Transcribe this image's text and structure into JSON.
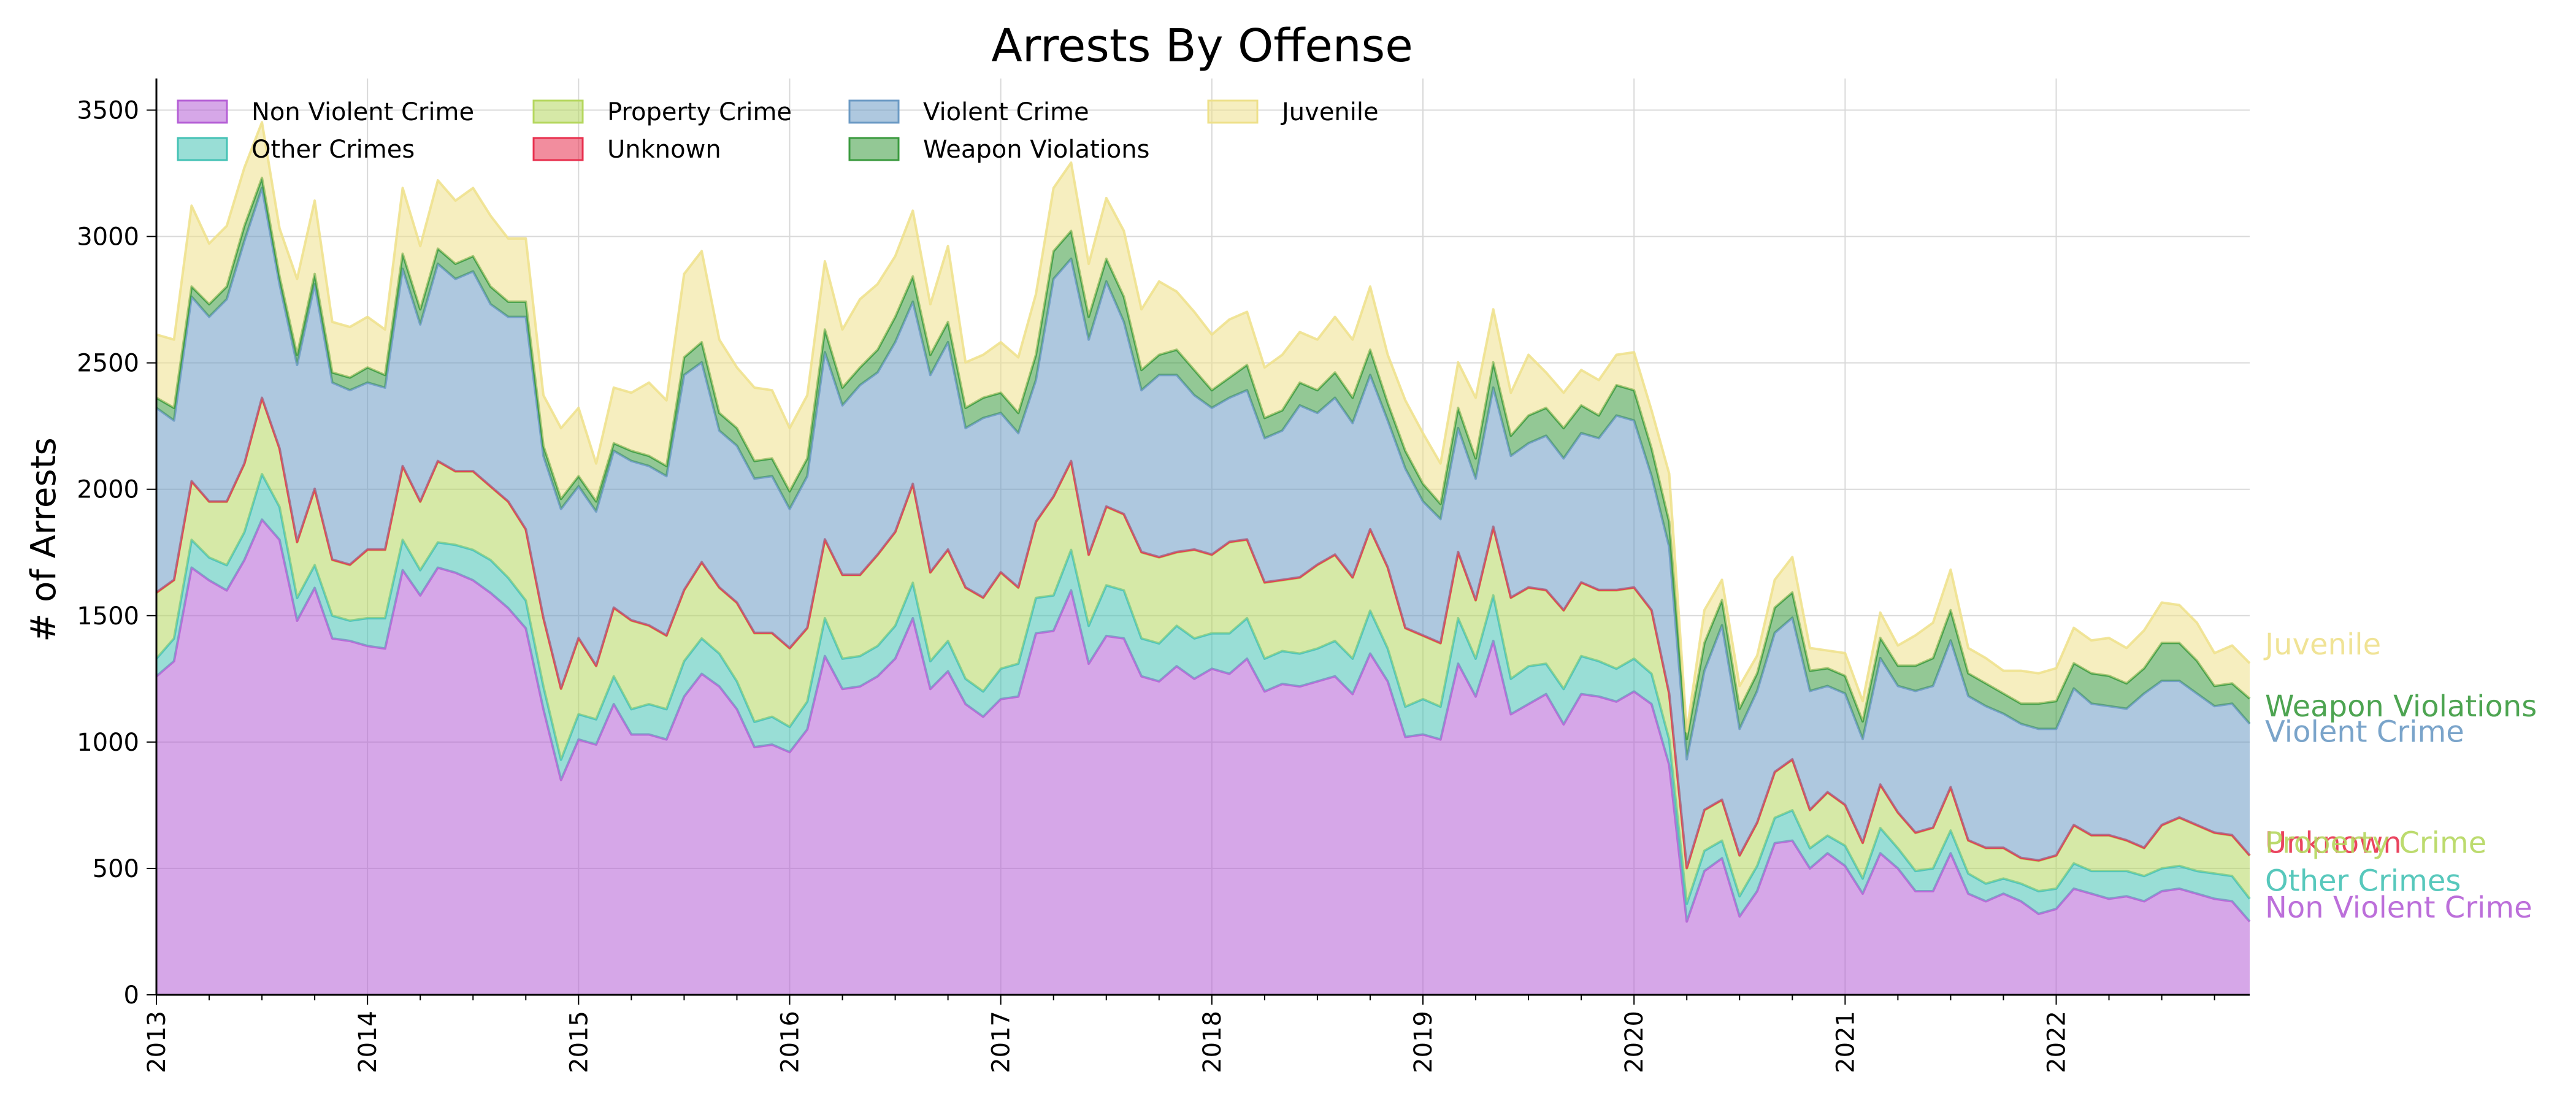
{
  "chart_data": {
    "type": "area",
    "stacked": true,
    "title": "Arrests By Offense",
    "xlabel": "",
    "ylabel": "# of Arrests",
    "xlim": [
      2013.0,
      2022.9167
    ],
    "ylim": [
      0,
      3625
    ],
    "grid": true,
    "legend_position": "top-left",
    "x_start": "2013-01",
    "x_step": "monthly",
    "x_tick_labels": [
      "2013",
      "2014",
      "2015",
      "2016",
      "2017",
      "2018",
      "2019",
      "2020",
      "2021",
      "2022"
    ],
    "y_ticks": [
      0,
      500,
      1000,
      1500,
      2000,
      2500,
      3000,
      3500
    ],
    "series": [
      {
        "name": "Non Violent Crime",
        "color": "#b55fd6",
        "values": [
          1260,
          1320,
          1690,
          1640,
          1600,
          1720,
          1880,
          1800,
          1480,
          1610,
          1410,
          1400,
          1380,
          1370,
          1680,
          1580,
          1690,
          1670,
          1640,
          1590,
          1530,
          1450,
          1130,
          850,
          1010,
          990,
          1150,
          1030,
          1030,
          1010,
          1180,
          1270,
          1220,
          1130,
          980,
          990,
          960,
          1050,
          1340,
          1210,
          1220,
          1260,
          1330,
          1490,
          1210,
          1280,
          1150,
          1100,
          1170,
          1180,
          1430,
          1440,
          1600,
          1310,
          1420,
          1410,
          1260,
          1240,
          1300,
          1250,
          1290,
          1270,
          1330,
          1200,
          1230,
          1220,
          1240,
          1260,
          1190,
          1350,
          1240,
          1020,
          1030,
          1010,
          1310,
          1180,
          1400,
          1110,
          1150,
          1190,
          1070,
          1190,
          1180,
          1160,
          1200,
          1150,
          910,
          290,
          490,
          540,
          310,
          410,
          600,
          610,
          500,
          560,
          510,
          400,
          560,
          500,
          410,
          410,
          560,
          400,
          370,
          400,
          370,
          320,
          340,
          420,
          400,
          380,
          390,
          370,
          410,
          420,
          400,
          380,
          370,
          290
        ]
      },
      {
        "name": "Other Crimes",
        "color": "#45c2b5",
        "values": [
          70,
          90,
          110,
          90,
          100,
          110,
          180,
          130,
          90,
          90,
          90,
          80,
          110,
          120,
          120,
          100,
          100,
          110,
          120,
          130,
          120,
          110,
          90,
          80,
          100,
          100,
          110,
          100,
          120,
          120,
          140,
          140,
          130,
          110,
          100,
          110,
          100,
          110,
          150,
          120,
          120,
          120,
          130,
          140,
          110,
          120,
          100,
          100,
          120,
          130,
          140,
          140,
          160,
          150,
          200,
          190,
          150,
          150,
          160,
          160,
          140,
          160,
          160,
          130,
          130,
          130,
          130,
          140,
          140,
          170,
          130,
          120,
          140,
          130,
          180,
          150,
          180,
          140,
          150,
          120,
          140,
          150,
          140,
          130,
          130,
          120,
          100,
          70,
          80,
          70,
          80,
          100,
          100,
          120,
          80,
          70,
          80,
          60,
          100,
          80,
          80,
          90,
          90,
          80,
          70,
          60,
          70,
          90,
          80,
          100,
          90,
          110,
          100,
          100,
          90,
          90,
          90,
          100,
          100,
          90
        ]
      },
      {
        "name": "Property Crime",
        "color": "#b5d75e",
        "values": [
          260,
          230,
          230,
          220,
          250,
          270,
          300,
          230,
          220,
          300,
          220,
          220,
          270,
          270,
          290,
          270,
          320,
          290,
          310,
          290,
          300,
          280,
          270,
          280,
          300,
          210,
          270,
          350,
          310,
          290,
          280,
          300,
          260,
          310,
          350,
          330,
          310,
          290,
          310,
          330,
          320,
          360,
          370,
          390,
          350,
          360,
          360,
          370,
          380,
          300,
          300,
          390,
          350,
          280,
          310,
          300,
          340,
          340,
          290,
          350,
          310,
          360,
          310,
          300,
          280,
          300,
          330,
          340,
          320,
          320,
          320,
          310,
          250,
          250,
          260,
          230,
          270,
          320,
          310,
          290,
          310,
          290,
          280,
          310,
          280,
          250,
          180,
          140,
          160,
          160,
          160,
          170,
          180,
          200,
          150,
          170,
          160,
          140,
          170,
          140,
          150,
          160,
          170,
          130,
          140,
          120,
          100,
          120,
          130,
          150,
          140,
          140,
          120,
          110,
          170,
          190,
          180,
          160,
          160,
          170
        ]
      },
      {
        "name": "Unknown",
        "color": "#e8304e",
        "values": [
          2,
          2,
          2,
          2,
          2,
          2,
          2,
          2,
          2,
          2,
          2,
          2,
          2,
          2,
          2,
          2,
          2,
          2,
          2,
          2,
          2,
          2,
          2,
          2,
          2,
          2,
          2,
          2,
          2,
          2,
          2,
          2,
          2,
          2,
          2,
          2,
          2,
          2,
          2,
          2,
          2,
          2,
          2,
          2,
          2,
          2,
          2,
          2,
          2,
          2,
          2,
          2,
          2,
          2,
          2,
          2,
          2,
          2,
          2,
          2,
          2,
          2,
          2,
          2,
          2,
          2,
          2,
          2,
          2,
          2,
          2,
          2,
          2,
          2,
          2,
          2,
          2,
          2,
          2,
          2,
          2,
          2,
          2,
          2,
          2,
          2,
          2,
          2,
          2,
          2,
          2,
          2,
          2,
          2,
          2,
          2,
          2,
          2,
          2,
          2,
          2,
          2,
          2,
          2,
          2,
          2,
          2,
          2,
          2,
          2,
          2,
          2,
          2,
          2,
          2,
          2,
          2,
          2,
          2,
          2
        ]
      },
      {
        "name": "Violent Crime",
        "color": "#6b9ac4",
        "values": [
          730,
          630,
          730,
          730,
          800,
          880,
          830,
          650,
          700,
          810,
          700,
          690,
          660,
          640,
          780,
          700,
          780,
          760,
          790,
          720,
          730,
          840,
          640,
          710,
          600,
          610,
          620,
          630,
          630,
          630,
          850,
          790,
          620,
          620,
          610,
          620,
          550,
          600,
          740,
          670,
          750,
          720,
          750,
          720,
          780,
          820,
          630,
          710,
          630,
          610,
          560,
          860,
          800,
          850,
          890,
          760,
          640,
          720,
          700,
          610,
          580,
          570,
          590,
          570,
          590,
          680,
          600,
          620,
          610,
          610,
          580,
          630,
          530,
          490,
          490,
          480,
          550,
          560,
          570,
          610,
          600,
          590,
          600,
          690,
          660,
          530,
          580,
          430,
          550,
          690,
          500,
          520,
          550,
          560,
          470,
          420,
          440,
          410,
          500,
          500,
          560,
          560,
          580,
          570,
          560,
          530,
          530,
          520,
          500,
          540,
          520,
          510,
          520,
          610,
          570,
          540,
          520,
          500,
          520,
          520
        ]
      },
      {
        "name": "Weapon Violations",
        "color": "#3a9a3e",
        "values": [
          40,
          50,
          40,
          50,
          50,
          60,
          40,
          30,
          40,
          40,
          40,
          50,
          60,
          50,
          60,
          60,
          60,
          60,
          60,
          70,
          60,
          60,
          40,
          40,
          40,
          40,
          30,
          40,
          40,
          40,
          70,
          80,
          70,
          70,
          70,
          70,
          70,
          70,
          90,
          70,
          70,
          90,
          100,
          100,
          80,
          80,
          80,
          80,
          80,
          80,
          100,
          110,
          110,
          90,
          90,
          100,
          80,
          80,
          100,
          100,
          70,
          80,
          100,
          80,
          80,
          90,
          90,
          100,
          100,
          100,
          70,
          70,
          70,
          60,
          80,
          80,
          100,
          80,
          110,
          110,
          120,
          110,
          90,
          120,
          120,
          110,
          100,
          80,
          110,
          100,
          80,
          70,
          100,
          100,
          80,
          70,
          70,
          70,
          80,
          80,
          100,
          110,
          120,
          90,
          90,
          80,
          80,
          100,
          110,
          100,
          120,
          120,
          100,
          100,
          150,
          150,
          130,
          80,
          80,
          100
        ]
      },
      {
        "name": "Juvenile",
        "color": "#eee08a",
        "values": [
          250,
          270,
          320,
          240,
          240,
          230,
          220,
          190,
          300,
          290,
          200,
          200,
          200,
          180,
          260,
          250,
          270,
          250,
          270,
          280,
          250,
          250,
          200,
          280,
          270,
          150,
          220,
          230,
          290,
          260,
          330,
          360,
          290,
          240,
          290,
          270,
          250,
          250,
          270,
          230,
          270,
          260,
          240,
          260,
          200,
          300,
          180,
          170,
          200,
          220,
          240,
          250,
          270,
          210,
          240,
          260,
          240,
          290,
          230,
          230,
          220,
          230,
          210,
          200,
          220,
          200,
          200,
          220,
          230,
          250,
          190,
          200,
          200,
          160,
          180,
          240,
          210,
          170,
          240,
          140,
          140,
          140,
          140,
          120,
          150,
          150,
          190,
          30,
          130,
          80,
          90,
          70,
          110,
          140,
          90,
          70,
          90,
          80,
          100,
          80,
          120,
          140,
          160,
          100,
          100,
          90,
          130,
          120,
          130,
          140,
          130,
          150,
          140,
          150,
          160,
          150,
          150,
          130,
          150,
          140
        ]
      }
    ],
    "end_labels": [
      "Juvenile",
      "Weapon Violations",
      "Violent Crime",
      "Unknown",
      "Property Crime",
      "Other Crimes",
      "Non Violent Crime"
    ]
  }
}
